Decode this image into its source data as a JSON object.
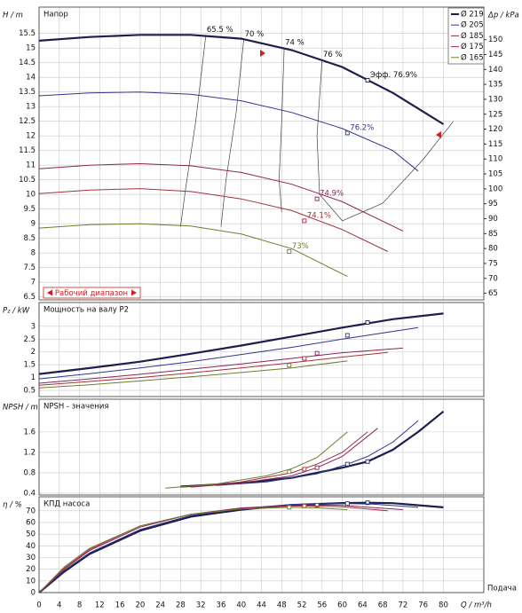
{
  "chart_data": [
    {
      "type": "line",
      "title": "Напор",
      "ylabel": "H / m",
      "y2label": "Δp / kPa",
      "ylim": [
        6.4,
        16.4
      ],
      "yticks": [
        6.5,
        7,
        7.5,
        8,
        8.5,
        9,
        9.5,
        10,
        10.5,
        11,
        11.5,
        12,
        12.5,
        13,
        13.5,
        14,
        14.5,
        15,
        15.5
      ],
      "y2lim": [
        62.8,
        160.9
      ],
      "y2ticks": [
        65,
        70,
        75,
        80,
        85,
        90,
        95,
        100,
        105,
        110,
        115,
        120,
        125,
        130,
        135,
        140,
        145,
        150
      ],
      "legend": "upper right",
      "annotation": "Рабочий диапазон",
      "series": [
        {
          "name": "Ø 219",
          "color": "#1c1f4d",
          "x": [
            0,
            10,
            20,
            30,
            40,
            50,
            60,
            70,
            80
          ],
          "values": [
            15.25,
            15.38,
            15.45,
            15.45,
            15.32,
            14.93,
            14.35,
            13.47,
            12.4
          ],
          "point": {
            "x": 65,
            "y": 13.9,
            "label": "Эфф. 76.9%"
          }
        },
        {
          "name": "Ø 205",
          "color": "#33358f",
          "x": [
            0,
            10,
            20,
            30,
            40,
            50,
            60,
            70,
            75
          ],
          "values": [
            13.37,
            13.47,
            13.5,
            13.42,
            13.2,
            12.8,
            12.25,
            11.5,
            10.8
          ],
          "point": {
            "x": 61,
            "y": 12.1,
            "label": "76.2%"
          }
        },
        {
          "name": "Ø 185",
          "color": "#8a2456",
          "x": [
            0,
            10,
            20,
            30,
            40,
            50,
            60,
            72
          ],
          "values": [
            10.88,
            11.0,
            11.05,
            10.98,
            10.75,
            10.35,
            9.75,
            8.75
          ],
          "point": {
            "x": 55,
            "y": 9.85,
            "label": "74.9%"
          }
        },
        {
          "name": "Ø 175",
          "color": "#a3303a",
          "x": [
            0,
            10,
            20,
            30,
            40,
            50,
            60,
            69
          ],
          "values": [
            10.03,
            10.15,
            10.2,
            10.1,
            9.85,
            9.45,
            8.8,
            8.05
          ],
          "point": {
            "x": 52.5,
            "y": 9.1,
            "label": "74.1%"
          }
        },
        {
          "name": "Ø 165",
          "color": "#6e7c2c",
          "x": [
            0,
            10,
            20,
            30,
            40,
            50,
            61
          ],
          "values": [
            8.85,
            8.97,
            9.0,
            8.92,
            8.65,
            8.15,
            7.2
          ],
          "point": {
            "x": 49.5,
            "y": 8.05,
            "label": "73%"
          }
        }
      ],
      "iso_lines": [
        {
          "label": "65.5 %",
          "x": [
            33,
            31,
            29,
            28
          ],
          "values": [
            15.45,
            12.5,
            10.2,
            8.9
          ]
        },
        {
          "label": "70 %",
          "x": [
            40.5,
            39,
            37,
            36
          ],
          "values": [
            15.3,
            12.8,
            10.5,
            8.9
          ]
        },
        {
          "label": "74 %",
          "x": [
            48.5,
            48,
            47.5,
            48
          ],
          "values": [
            15.0,
            12.5,
            10.5,
            9.4
          ]
        },
        {
          "label": "76 %",
          "x": [
            56,
            55,
            55.5,
            60,
            68,
            76,
            82
          ],
          "values": [
            14.6,
            12.0,
            10.0,
            9.1,
            9.7,
            11.2,
            12.5
          ]
        }
      ]
    },
    {
      "type": "line",
      "title": "Мощность на валу P2",
      "ylabel": "P₂ / kW",
      "ylim": [
        0.26,
        3.93
      ],
      "yticks": [
        0.5,
        1,
        1.5,
        2,
        2.5,
        3
      ],
      "series": [
        {
          "x": [
            0,
            10,
            20,
            30,
            40,
            50,
            60,
            70,
            80
          ],
          "values": [
            1.14,
            1.37,
            1.62,
            1.93,
            2.25,
            2.6,
            2.95,
            3.28,
            3.5
          ],
          "point": {
            "x": 65,
            "y": 3.15
          }
        },
        {
          "x": [
            0,
            10,
            20,
            30,
            40,
            50,
            60,
            70,
            75
          ],
          "values": [
            0.95,
            1.15,
            1.38,
            1.62,
            1.9,
            2.18,
            2.5,
            2.8,
            2.95
          ],
          "point": {
            "x": 61,
            "y": 2.65
          }
        },
        {
          "x": [
            0,
            10,
            20,
            30,
            40,
            50,
            60,
            72
          ],
          "values": [
            0.78,
            0.95,
            1.13,
            1.33,
            1.53,
            1.75,
            1.97,
            2.15
          ],
          "point": {
            "x": 55,
            "y": 1.95
          }
        },
        {
          "x": [
            0,
            10,
            20,
            30,
            40,
            50,
            60,
            69
          ],
          "values": [
            0.7,
            0.85,
            1.0,
            1.18,
            1.38,
            1.58,
            1.8,
            1.98
          ],
          "point": {
            "x": 52.5,
            "y": 1.75
          }
        },
        {
          "x": [
            0,
            10,
            20,
            30,
            40,
            50,
            61
          ],
          "values": [
            0.6,
            0.72,
            0.87,
            1.03,
            1.2,
            1.38,
            1.65
          ],
          "point": {
            "x": 49.5,
            "y": 1.48
          }
        }
      ]
    },
    {
      "type": "line",
      "title": "NPSH - значения",
      "ylabel": "NPSH / m",
      "ylim": [
        0.365,
        2.24
      ],
      "yticks": [
        0.4,
        0.8,
        1.2,
        1.6
      ],
      "series": [
        {
          "x": [
            28,
            40,
            50,
            60,
            65,
            70,
            75,
            80
          ],
          "values": [
            0.53,
            0.6,
            0.7,
            0.9,
            1.02,
            1.25,
            1.6,
            2.0
          ],
          "point": {
            "x": 65,
            "y": 1.02
          }
        },
        {
          "x": [
            35,
            45,
            55,
            61,
            65,
            70,
            75
          ],
          "values": [
            0.55,
            0.62,
            0.78,
            0.97,
            1.12,
            1.4,
            1.82
          ],
          "point": {
            "x": 61,
            "y": 0.97
          }
        },
        {
          "x": [
            30,
            40,
            50,
            55,
            60,
            67
          ],
          "values": [
            0.52,
            0.6,
            0.74,
            0.9,
            1.12,
            1.67
          ],
          "point": {
            "x": 55,
            "y": 0.9
          }
        },
        {
          "x": [
            30,
            40,
            50,
            55,
            60,
            65
          ],
          "values": [
            0.52,
            0.62,
            0.8,
            0.97,
            1.2,
            1.6
          ],
          "point": {
            "x": 52.5,
            "y": 0.87
          }
        },
        {
          "x": [
            25,
            35,
            45,
            50,
            55,
            61
          ],
          "values": [
            0.5,
            0.58,
            0.74,
            0.88,
            1.1,
            1.6
          ],
          "point": {
            "x": 49.5,
            "y": 0.82
          }
        }
      ]
    },
    {
      "type": "line",
      "title": "КПД насоса",
      "ylabel": "η / %",
      "xlabel": "Q / m³/h",
      "xnote": "Подача",
      "xlim": [
        0,
        88
      ],
      "xticks": [
        0,
        4,
        8,
        12,
        16,
        20,
        24,
        28,
        32,
        36,
        40,
        44,
        48,
        52,
        56,
        60,
        64,
        68,
        72,
        76,
        80
      ],
      "ylim": [
        0,
        82
      ],
      "yticks": [
        0,
        10,
        20,
        30,
        40,
        50,
        60,
        70
      ],
      "series": [
        {
          "x": [
            0,
            5,
            10,
            20,
            30,
            40,
            50,
            60,
            65,
            70,
            80
          ],
          "values": [
            0,
            18,
            33,
            53,
            65,
            71,
            75,
            76.6,
            76.9,
            76.5,
            73
          ],
          "point": {
            "x": 65,
            "y": 76.9
          }
        },
        {
          "x": [
            0,
            5,
            10,
            20,
            30,
            40,
            50,
            61,
            66,
            75
          ],
          "values": [
            0,
            19,
            34,
            54,
            66,
            72,
            75.5,
            76.2,
            75.8,
            73
          ],
          "point": {
            "x": 61,
            "y": 76.2
          }
        },
        {
          "x": [
            0,
            5,
            10,
            20,
            30,
            40,
            50,
            55,
            60,
            72
          ],
          "values": [
            0,
            20,
            36,
            56,
            67,
            72.5,
            74.5,
            74.9,
            74.6,
            71
          ],
          "point": {
            "x": 55,
            "y": 74.9
          }
        },
        {
          "x": [
            0,
            5,
            10,
            20,
            30,
            40,
            50,
            52.5,
            60,
            69
          ],
          "values": [
            0,
            21,
            37,
            57,
            67,
            72,
            74,
            74.1,
            73.5,
            70
          ],
          "point": {
            "x": 52.5,
            "y": 74.1
          }
        },
        {
          "x": [
            0,
            5,
            10,
            20,
            30,
            40,
            49.5,
            55,
            61
          ],
          "values": [
            0,
            22,
            38,
            57,
            67,
            71.5,
            73,
            72.5,
            71
          ],
          "point": {
            "x": 49.5,
            "y": 73
          }
        }
      ]
    }
  ]
}
